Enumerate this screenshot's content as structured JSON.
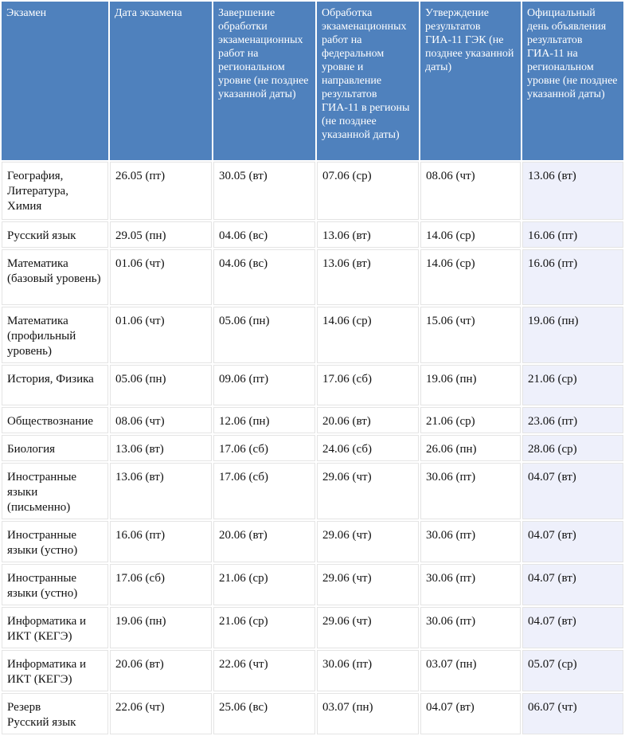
{
  "table": {
    "columns": [
      "Экзамен",
      "Дата экзамена",
      "Завершение обработки экзаменационных работ на региональном уровне (не позднее указанной даты)",
      "Обработка экзаменационных работ на федеральном уровне и направление результатов ГИА-11 в регионы (не позднее указанной даты)",
      "Утверждение результатов ГИА-11 ГЭК (не позднее указанной даты)",
      "Официальный день объявления результатов ГИА-11 на региональном уровне (не позднее указанной даты)"
    ],
    "rows": [
      [
        "География, Литература, Химия",
        "26.05 (пт)",
        "30.05 (вт)",
        "07.06 (ср)",
        "08.06 (чт)",
        "13.06 (вт)"
      ],
      [
        "Русский язык",
        "29.05 (пн)",
        "04.06 (вс)",
        "13.06 (вт)",
        "14.06 (ср)",
        "16.06 (пт)"
      ],
      [
        "Математика (базовый уровень)",
        "01.06 (чт)",
        "04.06 (вс)",
        "13.06 (вт)",
        "14.06 (ср)",
        "16.06 (пт)"
      ],
      [
        "Математика (профильный уровень)",
        "01.06 (чт)",
        "05.06 (пн)",
        "14.06 (ср)",
        "15.06 (чт)",
        "19.06 (пн)"
      ],
      [
        "История, Физика",
        "05.06 (пн)",
        "09.06 (пт)",
        "17.06 (сб)",
        "19.06 (пн)",
        "21.06 (ср)"
      ],
      [
        "Обществознание",
        "08.06 (чт)",
        "12.06 (пн)",
        "20.06 (вт)",
        "21.06 (ср)",
        "23.06 (пт)"
      ],
      [
        "Биология",
        "13.06 (вт)",
        "17.06 (сб)",
        "24.06 (сб)",
        "26.06 (пн)",
        "28.06 (ср)"
      ],
      [
        "Иностранные языки (письменно)",
        "13.06 (вт)",
        "17.06 (сб)",
        "29.06 (чт)",
        "30.06 (пт)",
        "04.07 (вт)"
      ],
      [
        "Иностранные языки (устно)",
        "16.06 (пт)",
        "20.06 (вт)",
        "29.06 (чт)",
        "30.06 (пт)",
        "04.07 (вт)"
      ],
      [
        "Иностранные языки (устно)",
        "17.06 (сб)",
        "21.06 (ср)",
        "29.06 (чт)",
        "30.06 (пт)",
        "04.07 (вт)"
      ],
      [
        "Информатика и ИКТ (КЕГЭ)",
        "19.06 (пн)",
        "21.06 (ср)",
        "29.06 (чт)",
        "30.06 (пт)",
        "04.07 (вт)"
      ],
      [
        "Информатика и ИКТ (КЕГЭ)",
        "20.06 (вт)",
        "22.06 (чт)",
        "30.06 (пт)",
        "03.07 (пн)",
        "05.07 (ср)"
      ],
      [
        "Резерв\nРусский язык",
        "22.06 (чт)",
        "25.06 (вс)",
        "03.07 (пн)",
        "04.07 (вт)",
        "06.07 (чт)"
      ]
    ]
  }
}
